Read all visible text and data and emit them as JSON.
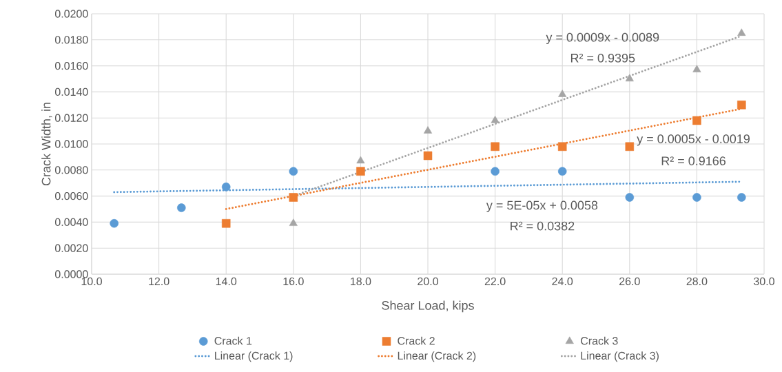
{
  "chart_data": {
    "type": "scatter",
    "xlabel": "Shear Load, kips",
    "ylabel": "Crack Width, in",
    "xlim": [
      10,
      30
    ],
    "ylim": [
      0,
      0.02
    ],
    "xticks": [
      {
        "value": 10,
        "label": "10.0"
      },
      {
        "value": 12,
        "label": "12.0"
      },
      {
        "value": 14,
        "label": "14.0"
      },
      {
        "value": 16,
        "label": "16.0"
      },
      {
        "value": 18,
        "label": "18.0"
      },
      {
        "value": 20,
        "label": "20.0"
      },
      {
        "value": 22,
        "label": "22.0"
      },
      {
        "value": 24,
        "label": "24.0"
      },
      {
        "value": 26,
        "label": "26.0"
      },
      {
        "value": 28,
        "label": "28.0"
      },
      {
        "value": 30,
        "label": "30.0"
      }
    ],
    "yticks": [
      {
        "value": 0,
        "label": "0.0000"
      },
      {
        "value": 0.002,
        "label": "0.0020"
      },
      {
        "value": 0.004,
        "label": "0.0040"
      },
      {
        "value": 0.006,
        "label": "0.0060"
      },
      {
        "value": 0.008,
        "label": "0.0080"
      },
      {
        "value": 0.01,
        "label": "0.0100"
      },
      {
        "value": 0.012,
        "label": "0.0120"
      },
      {
        "value": 0.014,
        "label": "0.0140"
      },
      {
        "value": 0.016,
        "label": "0.0160"
      },
      {
        "value": 0.018,
        "label": "0.0180"
      },
      {
        "value": 0.02,
        "label": "0.0200"
      }
    ],
    "grid": true,
    "legend": "bottom",
    "series": [
      {
        "name": "Crack 1",
        "marker": "circle",
        "color": "#5b9bd5",
        "x": [
          10.67,
          12.67,
          14,
          16,
          22,
          24,
          26,
          28,
          29.33
        ],
        "values": [
          0.0039,
          0.0051,
          0.0067,
          0.0079,
          0.0079,
          0.0079,
          0.0059,
          0.0059,
          0.0059
        ]
      },
      {
        "name": "Crack 2",
        "marker": "square",
        "color": "#ed7d31",
        "x": [
          14,
          16,
          18,
          20,
          22,
          24,
          26,
          28,
          29.33
        ],
        "values": [
          0.0039,
          0.0059,
          0.0079,
          0.0091,
          0.0098,
          0.0098,
          0.0098,
          0.0118,
          0.013
        ]
      },
      {
        "name": "Crack 3",
        "marker": "triangle",
        "color": "#a5a5a5",
        "x": [
          16,
          18,
          20,
          22,
          24,
          26,
          28,
          29.33
        ],
        "values": [
          0.0039,
          0.0087,
          0.011,
          0.0118,
          0.0138,
          0.015,
          0.0157,
          0.0185
        ]
      },
      {
        "name": "Linear (Crack 1)",
        "type": "line",
        "line_style": "dotted",
        "marker": "none",
        "color": "#5b9bd5",
        "x": [
          10.67,
          29.33
        ],
        "values": [
          0.0063,
          0.0071
        ]
      },
      {
        "name": "Linear (Crack 2)",
        "type": "line",
        "line_style": "dotted",
        "marker": "none",
        "color": "#ed7d31",
        "x": [
          14,
          29.33
        ],
        "values": [
          0.005,
          0.0127
        ]
      },
      {
        "name": "Linear (Crack 3)",
        "type": "line",
        "line_style": "dotted",
        "marker": "none",
        "color": "#a5a5a5",
        "x": [
          16,
          29.33
        ],
        "values": [
          0.006,
          0.0183
        ]
      }
    ],
    "annotations": [
      "y = 5E-05x + 0.0058",
      "R² = 0.0382",
      "y = 0.0005x - 0.0019",
      "R² = 0.9166",
      "y = 0.0009x - 0.0089",
      "R² = 0.9395"
    ]
  }
}
